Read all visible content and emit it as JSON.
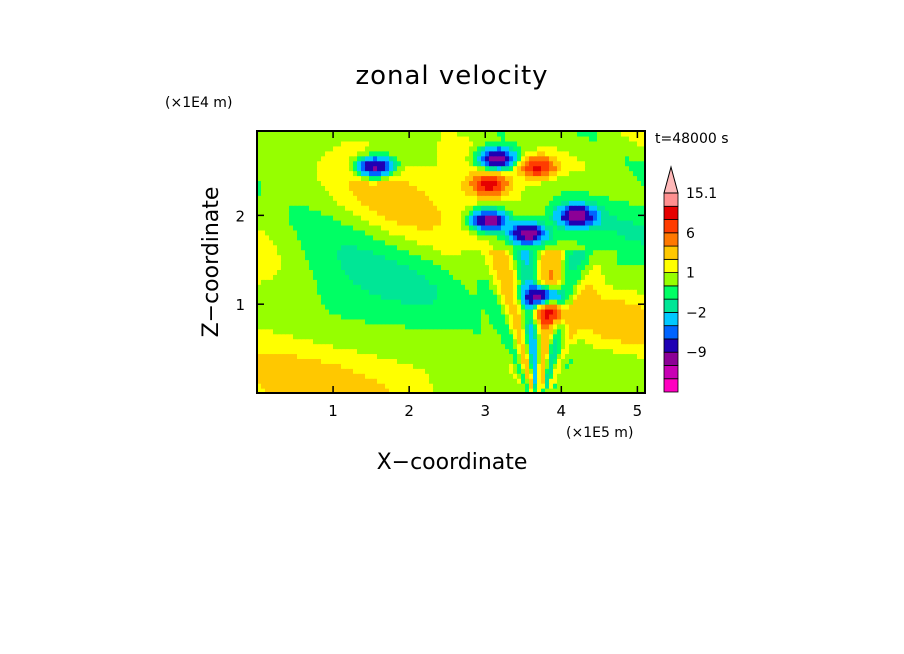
{
  "chart_data": {
    "type": "heatmap",
    "title": "zonal velocity",
    "xlabel": "X−coordinate",
    "ylabel": "Z−coordinate",
    "x_unit": "(×1E5 m)",
    "y_unit": "(×1E4 m)",
    "time_label": "t=48000 s",
    "xlim": [
      0,
      5.1
    ],
    "ylim": [
      0,
      2.95
    ],
    "x_ticks": [
      1,
      2,
      3,
      4,
      5
    ],
    "x_tick_labels": [
      "1",
      "2",
      "3",
      "4",
      "5"
    ],
    "y_ticks": [
      1,
      2
    ],
    "y_tick_labels": [
      "1",
      "2"
    ],
    "colorbar": {
      "levels": [
        -21,
        -15.1,
        -12,
        -9,
        -6,
        -4,
        -2,
        -1,
        0,
        1,
        2,
        4,
        6,
        9,
        12,
        15.1
      ],
      "colors": [
        "#ff00c0",
        "#c800b4",
        "#8c0096",
        "#1e00b4",
        "#0064ff",
        "#00c8ff",
        "#00e696",
        "#00ff64",
        "#96ff00",
        "#ffff00",
        "#ffc800",
        "#ff7800",
        "#ff3c00",
        "#e60000",
        "#ff9090",
        "#ffb8b8"
      ],
      "tick_values": [
        15.1,
        6,
        1,
        -2,
        -9
      ],
      "tick_labels": [
        "15.1",
        "6",
        "1",
        "−2",
        "−9"
      ],
      "extend_top": true
    },
    "features": [
      {
        "x": 1.55,
        "z": 2.55,
        "u": -12
      },
      {
        "x": 3.05,
        "z": 2.35,
        "u": 9
      },
      {
        "x": 3.7,
        "z": 2.55,
        "u": 9
      },
      {
        "x": 3.15,
        "z": 2.65,
        "u": -12
      },
      {
        "x": 3.05,
        "z": 1.95,
        "u": -12
      },
      {
        "x": 3.55,
        "z": 1.8,
        "u": -12
      },
      {
        "x": 4.2,
        "z": 2.0,
        "u": -12
      },
      {
        "x": 3.75,
        "z": 1.1,
        "u": -12
      },
      {
        "x": 3.85,
        "z": 0.9,
        "u": 6
      }
    ]
  }
}
